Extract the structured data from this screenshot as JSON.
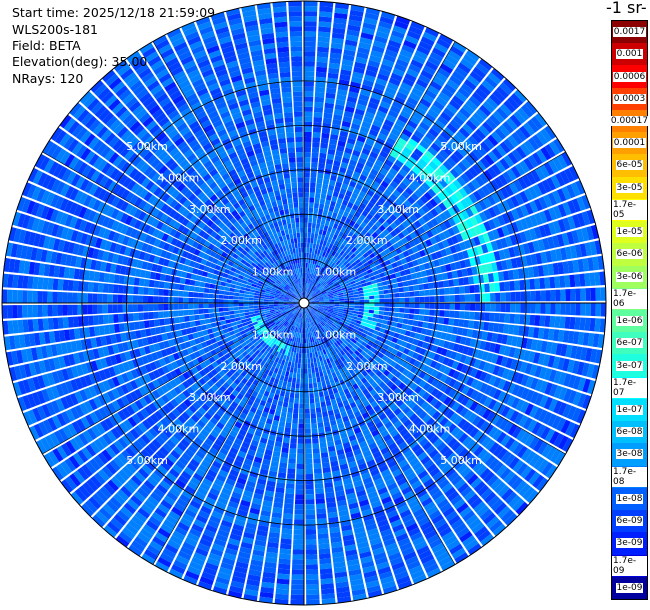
{
  "info": {
    "start_time": "Start time: 2025/12/18 21:59:09",
    "instrument": "WLS200s-181",
    "field": "Field: BETA",
    "elevation": "Elevation(deg): 35.00",
    "nrays": "NRays: 120"
  },
  "colorbar": {
    "units_label": "-1 sr-",
    "levels": [
      "0.0017",
      "0.001",
      "0.0006",
      "0.0003",
      "0.00017",
      "0.0001",
      "6e-05",
      "3e-05",
      "1.7e-05",
      "1e-05",
      "6e-06",
      "3e-06",
      "1.7e-06",
      "1e-06",
      "6e-07",
      "3e-07",
      "1.7e-07",
      "1e-07",
      "6e-08",
      "3e-08",
      "1.7e-08",
      "1e-08",
      "6e-09",
      "3e-09",
      "1.7e-09",
      "1e-09"
    ],
    "colors": [
      "#8b0000",
      "#cc0000",
      "#ff0000",
      "#ff4000",
      "#ff8000",
      "#ff9f00",
      "#ffbf00",
      "#ffdf00",
      "#ffff00",
      "#dfff1f",
      "#bfff3f",
      "#9fff5f",
      "#7fff7f",
      "#5fff9f",
      "#3fffbf",
      "#1fffdf",
      "#00ffff",
      "#00dfff",
      "#00bfff",
      "#009fff",
      "#007fff",
      "#005fff",
      "#003fff",
      "#001fff",
      "#0000df",
      "#00009f"
    ]
  },
  "chart_data": {
    "type": "heatmap",
    "projection": "polar (PPI)",
    "field": "BETA",
    "elevation_deg": 35.0,
    "nrays": 120,
    "range_rings_km": [
      1,
      2,
      3,
      4,
      5
    ],
    "ring_labels": [
      "1.00km",
      "2.00km",
      "3.00km",
      "4.00km",
      "5.00km"
    ],
    "max_range_km": 6.8,
    "background_level": "1e-08",
    "features": [
      {
        "description": "aerosol arc",
        "level": "1.7e-07",
        "range_km": [
          1.0,
          1.3
        ],
        "azimuth_deg": [
          195,
          255
        ]
      },
      {
        "description": "aerosol arc",
        "level": "1.7e-07",
        "range_km": [
          3.8,
          4.4
        ],
        "azimuth_deg": [
          30,
          90
        ]
      },
      {
        "description": "aerosol band",
        "level": "1.7e-07",
        "range_km": [
          1.4,
          1.7
        ],
        "azimuth_deg": [
          75,
          110
        ]
      }
    ]
  }
}
